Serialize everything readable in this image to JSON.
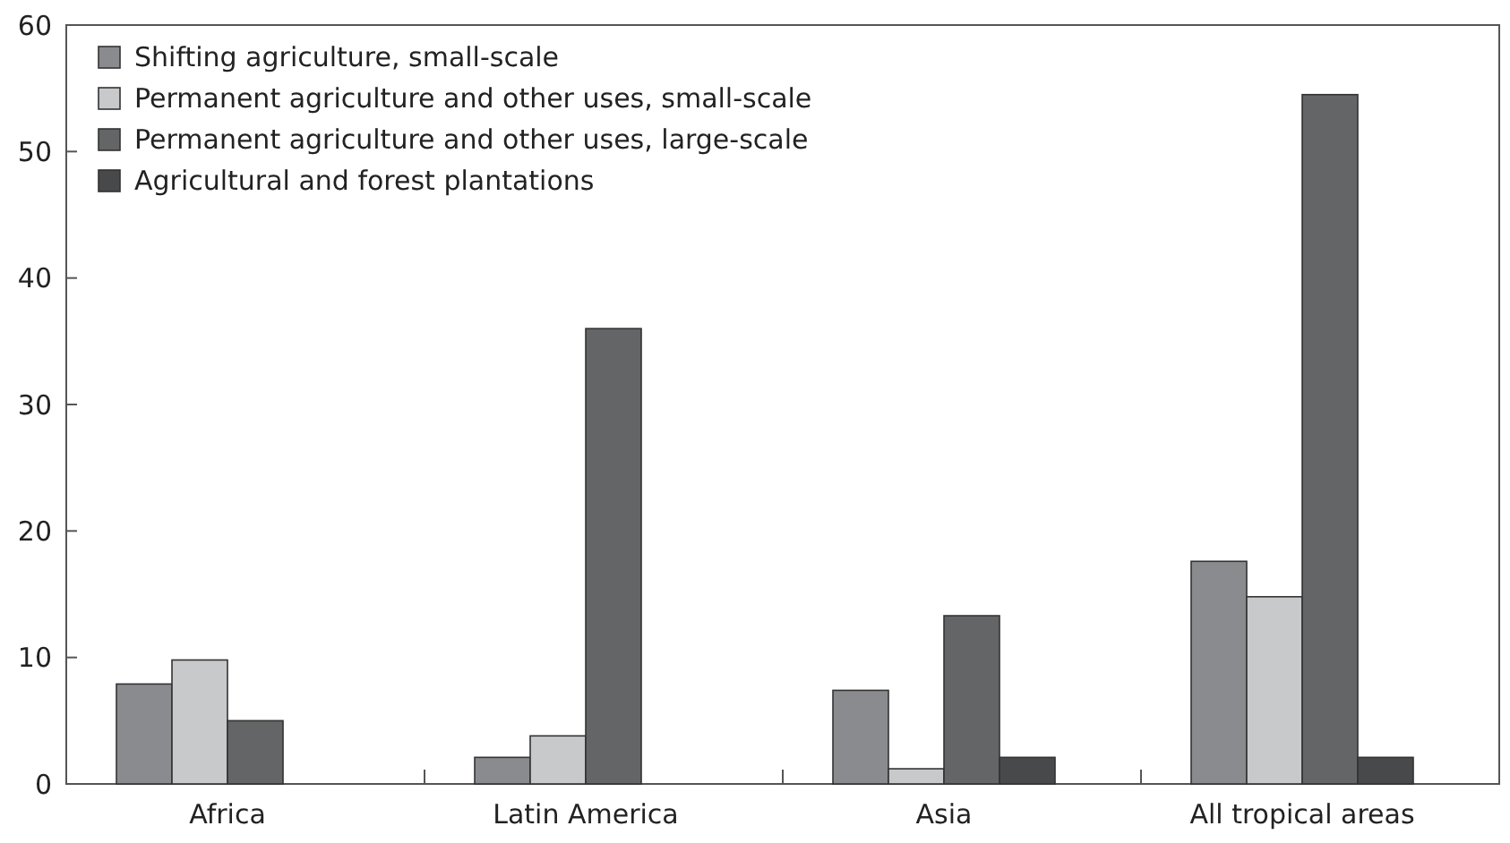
{
  "chart_data": {
    "type": "bar",
    "categories": [
      "Africa",
      "Latin America",
      "Asia",
      "All tropical areas"
    ],
    "series": [
      {
        "name": "Shifting agriculture, small-scale",
        "color": "#8a8b8f",
        "values": [
          7.9,
          2.1,
          7.4,
          17.6
        ]
      },
      {
        "name": "Permanent agriculture and other uses, small-scale",
        "color": "#c8c9cb",
        "values": [
          9.8,
          3.8,
          1.2,
          14.8
        ]
      },
      {
        "name": "Permanent agriculture and other uses, large-scale",
        "color": "#646567",
        "values": [
          5.0,
          36.0,
          13.3,
          54.5
        ]
      },
      {
        "name": "Agricultural and forest plantations",
        "color": "#48494b",
        "values": [
          null,
          null,
          2.1,
          2.1
        ]
      }
    ],
    "ylim": [
      0,
      60
    ],
    "yticks": [
      0,
      10,
      20,
      30,
      40,
      50,
      60
    ],
    "legend": "top left"
  }
}
